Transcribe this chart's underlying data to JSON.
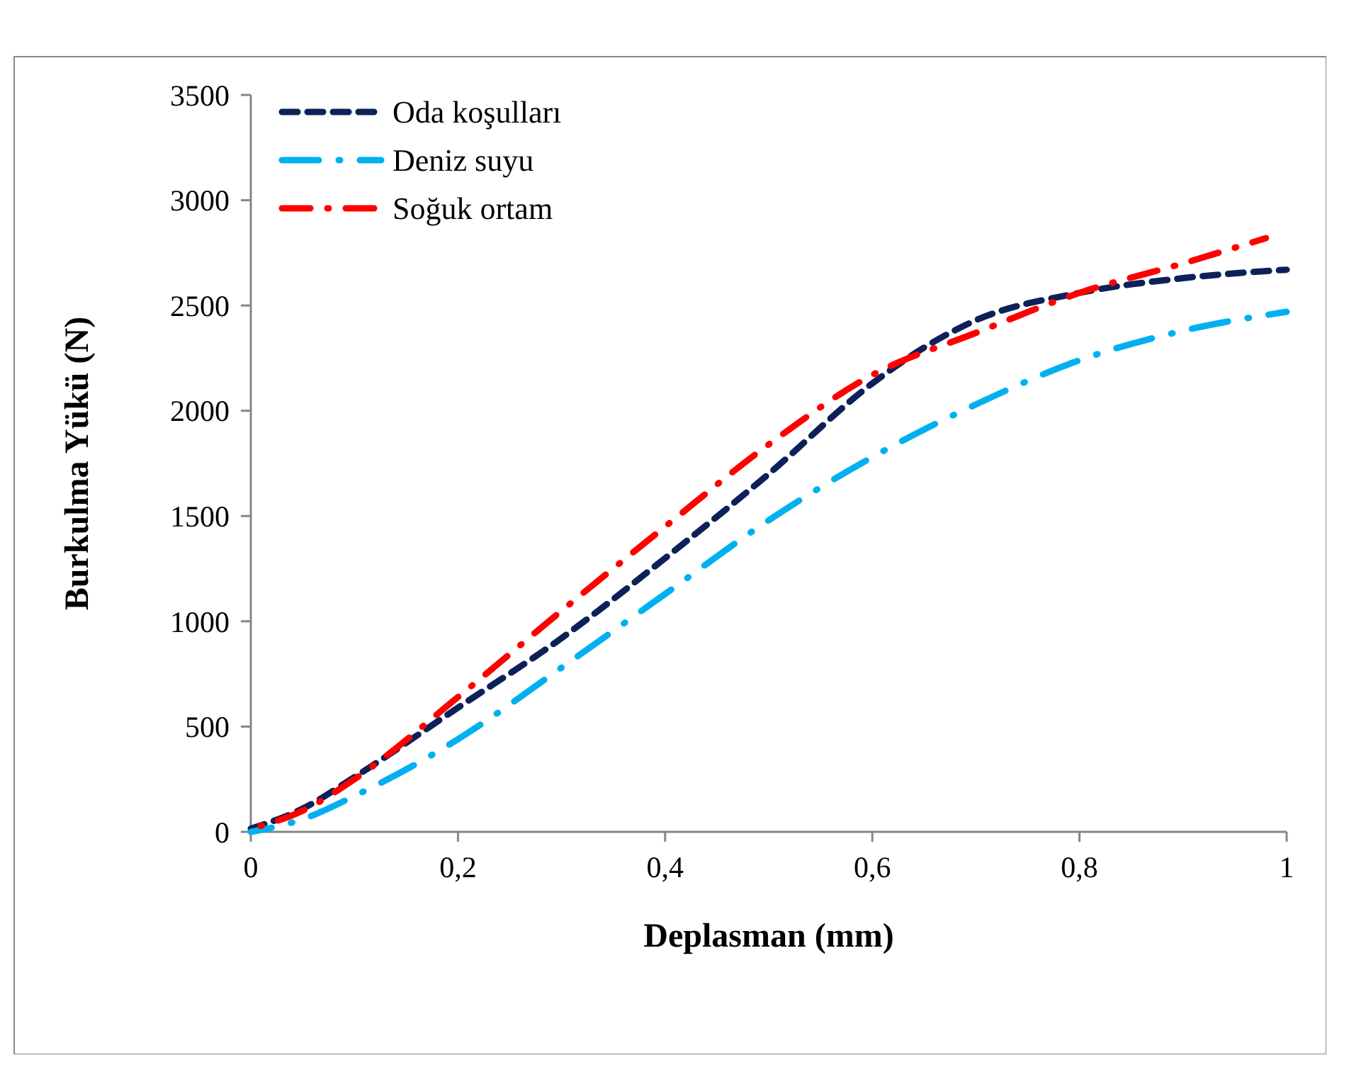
{
  "chart_data": {
    "type": "line",
    "xlabel": "Deplasman (mm)",
    "ylabel": "Burkulma Yükü (N)",
    "xlim": [
      0,
      1
    ],
    "xticks": [
      0,
      {
        "value": 0.2,
        "label": "0,2"
      },
      {
        "value": 0.4,
        "label": "0,4"
      },
      {
        "value": 0.6,
        "label": "0,6"
      },
      {
        "value": 0.8,
        "label": "0,8"
      },
      1
    ],
    "ylim": [
      0,
      3500
    ],
    "yticks": [
      0,
      500,
      1000,
      1500,
      2000,
      2500,
      3000,
      3500
    ],
    "grid": false,
    "legend": "top left",
    "series": [
      {
        "name": "Oda koşulları",
        "color": "#0d2159",
        "line_style": "dashed",
        "x": [
          0,
          0.05,
          0.1,
          0.2,
          0.3,
          0.4,
          0.5,
          0.6,
          0.65,
          0.7,
          0.8,
          0.9,
          1.0
        ],
        "values": [
          15,
          110,
          260,
          590,
          920,
          1300,
          1700,
          2130,
          2300,
          2430,
          2560,
          2630,
          2670
        ]
      },
      {
        "name": "Deniz suyu",
        "color": "#00b0f0",
        "line_style": "dashed",
        "x": [
          0,
          0.05,
          0.1,
          0.2,
          0.3,
          0.4,
          0.5,
          0.6,
          0.7,
          0.8,
          0.9,
          1.0
        ],
        "values": [
          0,
          60,
          170,
          440,
          780,
          1130,
          1480,
          1780,
          2030,
          2240,
          2380,
          2470
        ]
      },
      {
        "name": "Soğuk ortam",
        "color": "#ff0000",
        "line_style": "dashed",
        "x": [
          0,
          0.05,
          0.1,
          0.2,
          0.3,
          0.4,
          0.5,
          0.6,
          0.7,
          0.8,
          0.9,
          0.98
        ],
        "values": [
          15,
          100,
          250,
          640,
          1050,
          1450,
          1840,
          2170,
          2370,
          2560,
          2700,
          2820
        ]
      }
    ]
  }
}
